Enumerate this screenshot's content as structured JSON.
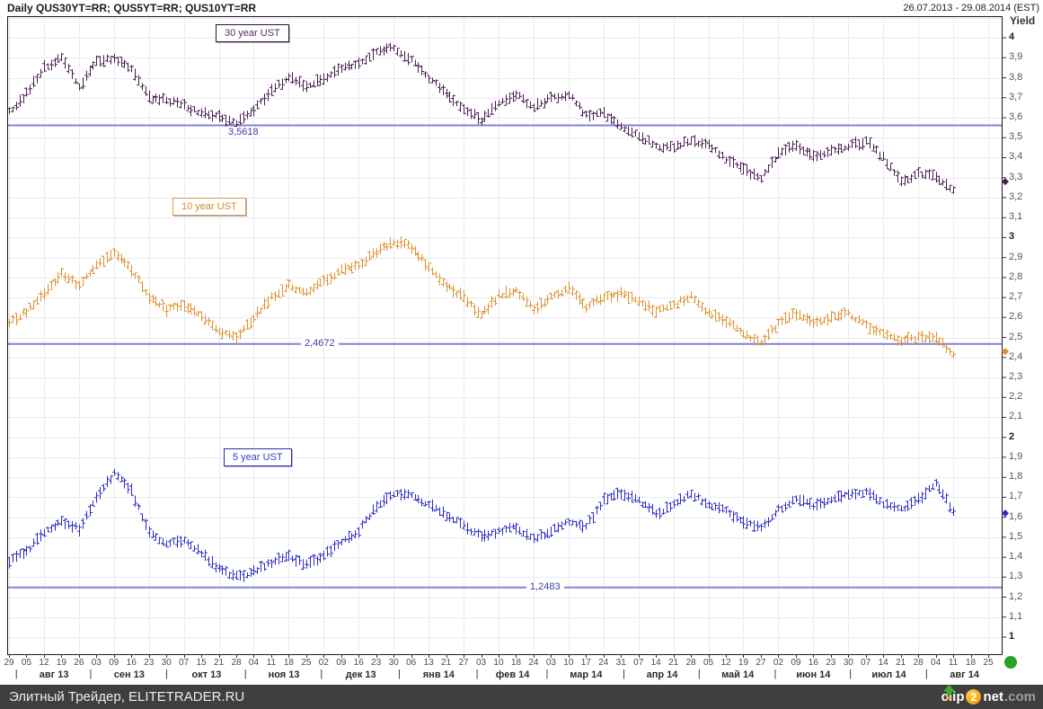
{
  "header": {
    "title": "Daily QUS30YT=RR; QUS5YT=RR; QUS10YT=RR",
    "date_range": "26.07.2013 - 29.08.2014 (EST)"
  },
  "footer": {
    "watermark": "Элитный Трейдер, ELITETRADER.RU",
    "logo": {
      "clip": "clip",
      "two": "2",
      "net": "net",
      "com": ".com"
    }
  },
  "chart_data": {
    "type": "ohlc",
    "title": "Daily QUS30YT=RR; QUS5YT=RR; QUS10YT=RR",
    "period": "26.07.2013 - 29.08.2014 (EST)",
    "grid": true,
    "y_axis": {
      "label": "Yield",
      "min": 1.0,
      "max": 4.0,
      "tick_step": 0.1,
      "decimal_separator": ",",
      "side": "right"
    },
    "x_axis": {
      "day_ticks": [
        "29",
        "05",
        "12",
        "19",
        "26",
        "03",
        "09",
        "16",
        "23",
        "30",
        "07",
        "15",
        "21",
        "28",
        "04",
        "11",
        "18",
        "25",
        "02",
        "09",
        "16",
        "23",
        "30",
        "06",
        "13",
        "21",
        "27",
        "03",
        "10",
        "18",
        "24",
        "03",
        "10",
        "17",
        "24",
        "31",
        "07",
        "14",
        "21",
        "28",
        "05",
        "12",
        "19",
        "27",
        "02",
        "09",
        "16",
        "23",
        "30",
        "07",
        "14",
        "21",
        "28",
        "04",
        "11",
        "18",
        "25"
      ],
      "months": [
        {
          "label": "авг 13",
          "start_week": 0.45
        },
        {
          "label": "сен 13",
          "start_week": 4.7
        },
        {
          "label": "окт 13",
          "start_week": 9.05
        },
        {
          "label": "ноя 13",
          "start_week": 13.55
        },
        {
          "label": "дек 13",
          "start_week": 17.9
        },
        {
          "label": "янв 14",
          "start_week": 22.35
        },
        {
          "label": "фев 14",
          "start_week": 26.8
        },
        {
          "label": "мар 14",
          "start_week": 30.8
        },
        {
          "label": "апр 14",
          "start_week": 35.2
        },
        {
          "label": "май 14",
          "start_week": 39.5
        },
        {
          "label": "июн 14",
          "start_week": 43.85
        },
        {
          "label": "июл 14",
          "start_week": 48.15
        },
        {
          "label": "авг 14",
          "start_week": 52.5
        }
      ],
      "bars_per_week": 5,
      "data_end_week": 54
    },
    "level_line_color": "#8282d8",
    "series": [
      {
        "name": "30 year UST",
        "color": "#4b1d52",
        "level_line": {
          "value": 3.5618,
          "label": "3,5618"
        },
        "last_value": 3.28,
        "weekly_values": [
          3.63,
          3.72,
          3.85,
          3.9,
          3.75,
          3.88,
          3.9,
          3.85,
          3.7,
          3.69,
          3.66,
          3.62,
          3.6,
          3.57,
          3.64,
          3.74,
          3.8,
          3.76,
          3.8,
          3.85,
          3.87,
          3.93,
          3.95,
          3.89,
          3.8,
          3.73,
          3.64,
          3.59,
          3.68,
          3.72,
          3.65,
          3.7,
          3.72,
          3.61,
          3.62,
          3.56,
          3.51,
          3.46,
          3.45,
          3.49,
          3.46,
          3.39,
          3.34,
          3.3,
          3.42,
          3.46,
          3.41,
          3.43,
          3.46,
          3.48,
          3.4,
          3.28,
          3.32,
          3.31,
          3.23
        ]
      },
      {
        "name": "10 year UST",
        "color": "#dd8f2d",
        "level_line": {
          "value": 2.4672,
          "label": "2,4672"
        },
        "last_value": 2.43,
        "weekly_values": [
          2.58,
          2.63,
          2.72,
          2.82,
          2.76,
          2.86,
          2.92,
          2.84,
          2.7,
          2.64,
          2.66,
          2.6,
          2.53,
          2.5,
          2.6,
          2.7,
          2.76,
          2.72,
          2.78,
          2.84,
          2.86,
          2.93,
          2.98,
          2.95,
          2.85,
          2.76,
          2.7,
          2.61,
          2.71,
          2.74,
          2.64,
          2.7,
          2.75,
          2.65,
          2.7,
          2.72,
          2.68,
          2.63,
          2.66,
          2.71,
          2.62,
          2.58,
          2.52,
          2.47,
          2.57,
          2.62,
          2.58,
          2.6,
          2.62,
          2.56,
          2.52,
          2.48,
          2.5,
          2.5,
          2.42
        ]
      },
      {
        "name": "5 year UST",
        "color": "#2b2bc4",
        "level_line": {
          "value": 1.2483,
          "label": "1,2483"
        },
        "last_value": 1.62,
        "weekly_values": [
          1.38,
          1.43,
          1.52,
          1.58,
          1.54,
          1.7,
          1.82,
          1.73,
          1.52,
          1.47,
          1.48,
          1.42,
          1.34,
          1.3,
          1.33,
          1.37,
          1.41,
          1.36,
          1.41,
          1.48,
          1.53,
          1.66,
          1.72,
          1.71,
          1.66,
          1.61,
          1.56,
          1.5,
          1.53,
          1.55,
          1.49,
          1.53,
          1.58,
          1.55,
          1.69,
          1.72,
          1.68,
          1.62,
          1.66,
          1.72,
          1.66,
          1.63,
          1.58,
          1.55,
          1.64,
          1.69,
          1.66,
          1.69,
          1.71,
          1.73,
          1.67,
          1.64,
          1.69,
          1.77,
          1.63
        ]
      }
    ]
  },
  "decorations": {
    "green_dot_color": "#27a127"
  }
}
